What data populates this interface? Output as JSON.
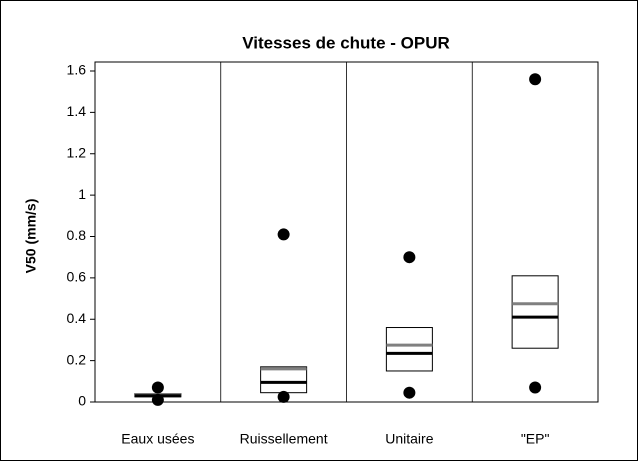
{
  "chart_data": {
    "type": "box",
    "title": "Vitesses de chute - OPUR",
    "y_label": "V50 (mm/s)",
    "categories": [
      "Eaux usées",
      "Ruissellement",
      "Unitaire",
      "\"EP\""
    ],
    "q1": [
      0.025,
      0.045,
      0.15,
      0.26
    ],
    "q3": [
      0.04,
      0.17,
      0.36,
      0.61
    ],
    "median": [
      0.03,
      0.095,
      0.235,
      0.41
    ],
    "mean": [
      0.035,
      0.16,
      0.275,
      0.475
    ],
    "min": [
      0.01,
      0.025,
      0.045,
      0.07
    ],
    "max": [
      0.07,
      0.81,
      0.7,
      1.56
    ],
    "median_color": "#000000",
    "mean_color": "#808080",
    "point_color": "#000000",
    "ylim": [
      0,
      1.6
    ],
    "yticks": [
      0,
      0.2,
      0.4,
      0.6,
      0.8,
      1,
      1.2,
      1.4,
      1.6
    ]
  }
}
